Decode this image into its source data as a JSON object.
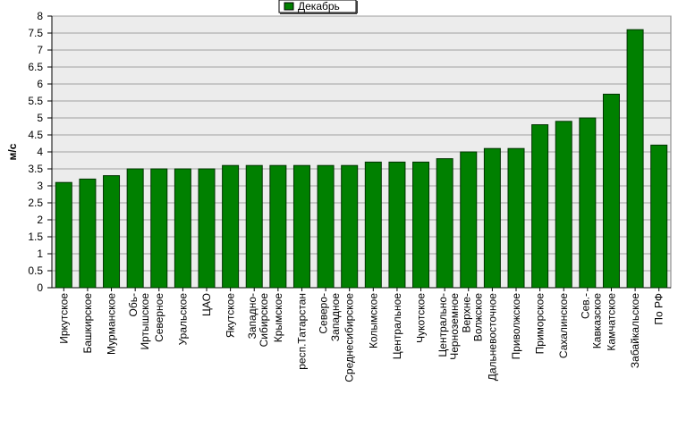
{
  "chart_data": {
    "type": "bar",
    "y_label": "м/с",
    "series": [
      {
        "name": "Декабрь",
        "color": "#008000",
        "values": [
          3.1,
          3.2,
          3.3,
          3.5,
          3.5,
          3.5,
          3.5,
          3.6,
          3.6,
          3.6,
          3.6,
          3.6,
          3.6,
          3.7,
          3.7,
          3.7,
          3.8,
          4.0,
          4.1,
          4.1,
          4.8,
          4.9,
          5.0,
          5.7,
          7.6,
          4.2
        ]
      }
    ],
    "categories": [
      "Иркутское",
      "Башкирское",
      "Мурманское",
      "Обь-\nИртышское",
      "Северное",
      "Уральское",
      "ЦАО",
      "Якутское",
      "Западно-\nСибирское",
      "Крымское",
      "респ.Татарстан",
      "Северо-\nЗападное",
      "Среднесибирское",
      "Колымское",
      "Центральное",
      "Чукотское",
      "Центрально-\nЧерноземное",
      "Верхне-\nВолжское",
      "Дальневосточное",
      "Приволжское",
      "Приморское",
      "Сахалинское",
      "Сев.-\nКавказское",
      "Камчатское",
      "Забайкальское",
      "По РФ"
    ],
    "ylim": [
      0,
      8
    ],
    "yticks": [
      0,
      0.5,
      1,
      1.5,
      2,
      2.5,
      3,
      3.5,
      4,
      4.5,
      5,
      5.5,
      6,
      6.5,
      7,
      7.5,
      8
    ],
    "grid": true,
    "legend": "top"
  }
}
